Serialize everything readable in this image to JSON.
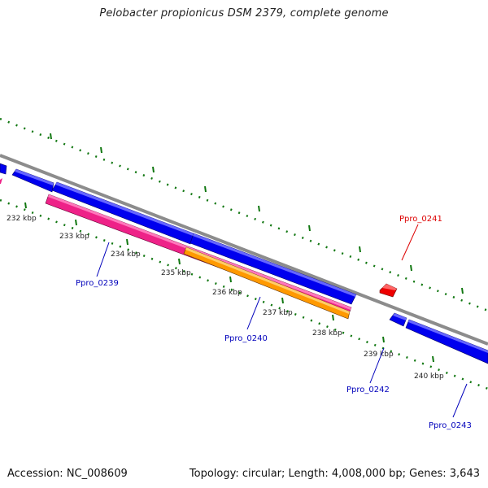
{
  "title": "Pelobacter propionicus DSM 2379, complete genome",
  "footer": {
    "accession": "Accession: NC_008609",
    "summary": "Topology: circular; Length: 4,008,000 bp; Genes: 3,643"
  },
  "kbp_labels": [
    "232 kbp",
    "233 kbp",
    "234 kbp",
    "235 kbp",
    "236 kbp",
    "237 kbp",
    "238 kbp",
    "239 kbp",
    "240 kbp"
  ],
  "gene_labels": [
    "Ppro_0239",
    "Ppro_0240",
    "Ppro_0241",
    "Ppro_0242",
    "Ppro_0243"
  ],
  "colors": {
    "backbone": "#8c8c8c",
    "gene_blue": "#0000ee",
    "gene_red": "#ee0000",
    "feature_pink": "#ee2288",
    "feature_orange": "#ff9900",
    "tick_green": "#117711",
    "label_blue": "#0000bb",
    "label_red": "#dd0000"
  }
}
